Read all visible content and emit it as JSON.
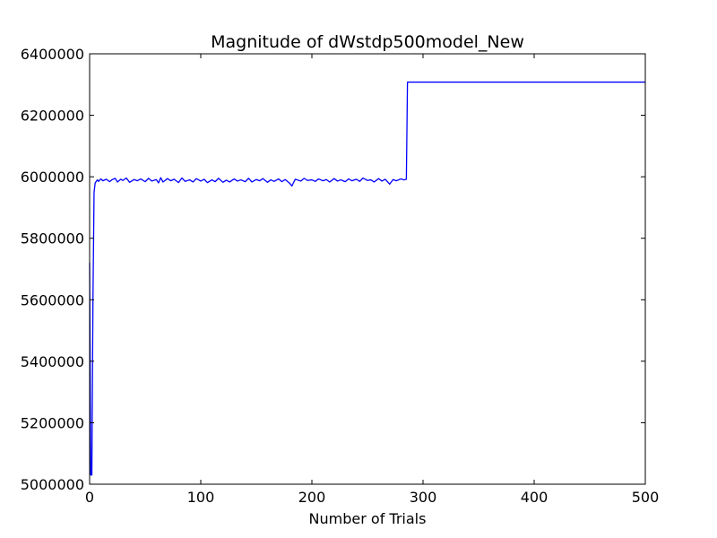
{
  "chart_data": {
    "type": "line",
    "title": "Magnitude of dWstdp500model_New",
    "xlabel": "Number of Trials",
    "ylabel": "",
    "xlim": [
      0,
      500
    ],
    "ylim": [
      5000000,
      6400000
    ],
    "xticks": [
      0,
      100,
      200,
      300,
      400,
      500
    ],
    "yticks": [
      5000000,
      5200000,
      5400000,
      5600000,
      5800000,
      6000000,
      6200000,
      6400000
    ],
    "xtick_labels": [
      "0",
      "100",
      "200",
      "300",
      "400",
      "500"
    ],
    "ytick_labels": [
      "5000000",
      "5200000",
      "5400000",
      "5600000",
      "5800000",
      "6000000",
      "6200000",
      "6400000"
    ],
    "grid": false,
    "legend": "none",
    "series": [
      {
        "color": "#0000ff",
        "x": [
          0,
          1,
          2,
          3,
          4,
          5,
          6,
          7,
          8,
          10,
          12,
          15,
          18,
          20,
          23,
          25,
          28,
          30,
          33,
          36,
          40,
          43,
          46,
          50,
          53,
          56,
          60,
          62,
          64,
          66,
          70,
          73,
          76,
          80,
          83,
          86,
          90,
          93,
          96,
          100,
          103,
          106,
          110,
          113,
          116,
          120,
          123,
          126,
          130,
          133,
          136,
          140,
          143,
          146,
          150,
          153,
          156,
          160,
          163,
          166,
          170,
          173,
          176,
          180,
          182,
          185,
          190,
          193,
          196,
          200,
          203,
          206,
          210,
          213,
          216,
          220,
          223,
          226,
          230,
          233,
          236,
          240,
          243,
          246,
          250,
          253,
          256,
          260,
          263,
          266,
          270,
          273,
          276,
          280,
          283,
          285,
          286,
          300,
          350,
          400,
          450,
          500
        ],
        "y": [
          5720000,
          5030000,
          5030000,
          5600000,
          5950000,
          5980000,
          5985000,
          5990000,
          5985000,
          5993000,
          5987000,
          5992000,
          5984000,
          5990000,
          5995000,
          5983000,
          5992000,
          5988000,
          5996000,
          5982000,
          5991000,
          5987000,
          5993000,
          5984000,
          5995000,
          5986000,
          5991000,
          5980000,
          5997000,
          5983000,
          5994000,
          5987000,
          5992000,
          5981000,
          5996000,
          5985000,
          5990000,
          5983000,
          5994000,
          5986000,
          5992000,
          5981000,
          5990000,
          5984000,
          5995000,
          5982000,
          5989000,
          5983000,
          5993000,
          5986000,
          5990000,
          5984000,
          5995000,
          5983000,
          5991000,
          5987000,
          5994000,
          5982000,
          5990000,
          5985000,
          5993000,
          5984000,
          5991000,
          5979000,
          5970000,
          5992000,
          5986000,
          5995000,
          5988000,
          5990000,
          5985000,
          5993000,
          5987000,
          5991000,
          5983000,
          5994000,
          5986000,
          5990000,
          5984000,
          5993000,
          5987000,
          5992000,
          5985000,
          5996000,
          5988000,
          5990000,
          5983000,
          5994000,
          5986000,
          5992000,
          5976000,
          5991000,
          5987000,
          5993000,
          5990000,
          5992000,
          6308000,
          6308000,
          6308000,
          6308000,
          6308000,
          6308000
        ]
      }
    ]
  }
}
